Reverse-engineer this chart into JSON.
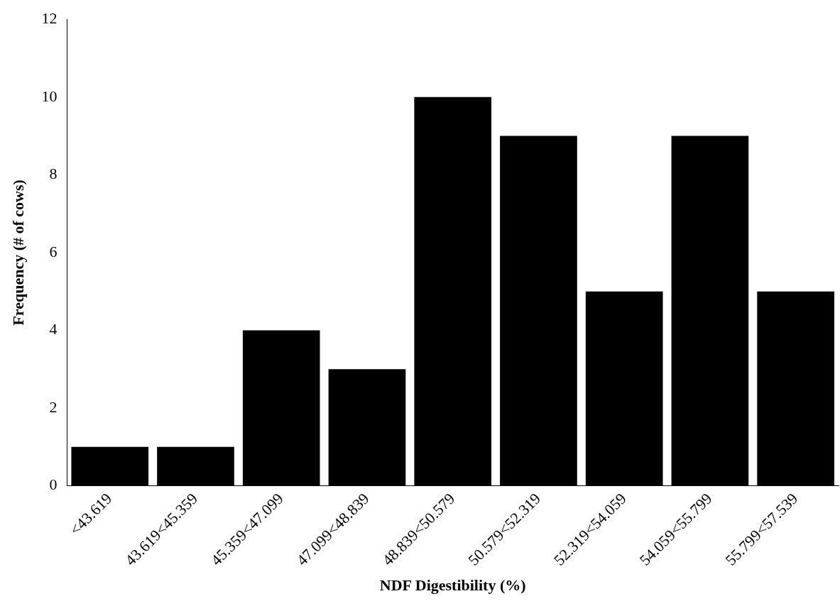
{
  "chart_data": {
    "type": "bar",
    "xlabel": "NDF Digestibility (%)",
    "ylabel": "Frequency (# of cows)",
    "categories": [
      "<43.619",
      "43.619<45.359",
      "45.359<47.099",
      "47.099<48.839",
      "48.839<50.579",
      "50.579<52.319",
      "52.319<54.059",
      "54.059<55.799",
      "55.799<57.539"
    ],
    "values": [
      1,
      1,
      4,
      3,
      10,
      9,
      5,
      9,
      5
    ],
    "color": "#000000",
    "ylim": [
      0,
      12
    ],
    "yticks": [
      0,
      2,
      4,
      6,
      8,
      10,
      12
    ],
    "grid": false,
    "legend": false
  }
}
